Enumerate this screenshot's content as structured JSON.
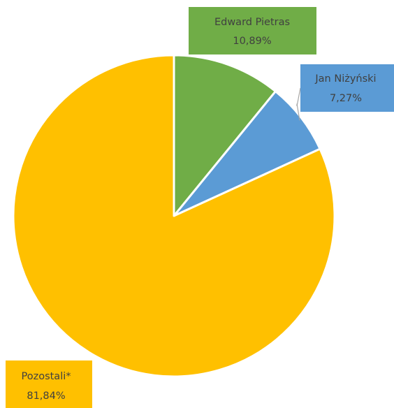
{
  "chart_data": {
    "type": "pie",
    "title": "",
    "slices": [
      {
        "label": "Edward Pietras",
        "value_label": "10,89%",
        "value": 10.89,
        "color": "#70ad47"
      },
      {
        "label": "Jan Niżyński",
        "value_label": "7,27%",
        "value": 7.27,
        "color": "#5b9bd5"
      },
      {
        "label": "Pozostali*",
        "value_label": "81,84%",
        "value": 81.84,
        "color": "#ffc000"
      }
    ],
    "start_angle_deg": 0,
    "direction": "clockwise",
    "slice_border_color": "#ffffff",
    "legend": "none"
  }
}
